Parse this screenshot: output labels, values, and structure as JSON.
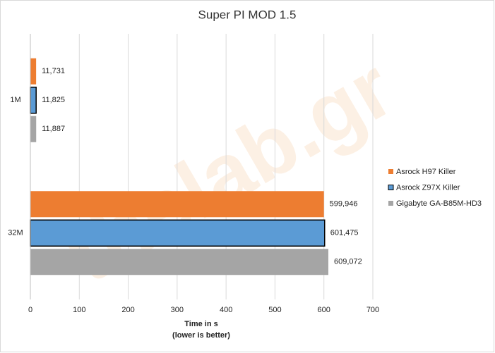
{
  "chart_data": {
    "type": "barh",
    "title": "Super PI MOD 1.5",
    "xlabel": [
      "Time in s",
      "(lower is better)"
    ],
    "watermark": "thelab.gr",
    "categories": [
      "1M",
      "32M"
    ],
    "series": [
      {
        "name": "Asrock H97 Killer",
        "color": "#ed7d31",
        "values": [
          11.731,
          599.946
        ],
        "value_labels": [
          "11,731",
          "599,946"
        ]
      },
      {
        "name": "Asrock Z97X Killer",
        "color": "#5b9bd5",
        "edgecolor": "#000000",
        "values": [
          11.825,
          601.475
        ],
        "value_labels": [
          "11,825",
          "601,475"
        ]
      },
      {
        "name": "Gigabyte GA-B85M-HD3",
        "color": "#a5a5a5",
        "values": [
          11.887,
          609.072
        ],
        "value_labels": [
          "11,887",
          "609,072"
        ]
      }
    ],
    "xlim": [
      0,
      700
    ],
    "xticks": [
      0,
      100,
      200,
      300,
      400,
      500,
      600,
      700
    ],
    "grid": true,
    "legend": "right"
  }
}
